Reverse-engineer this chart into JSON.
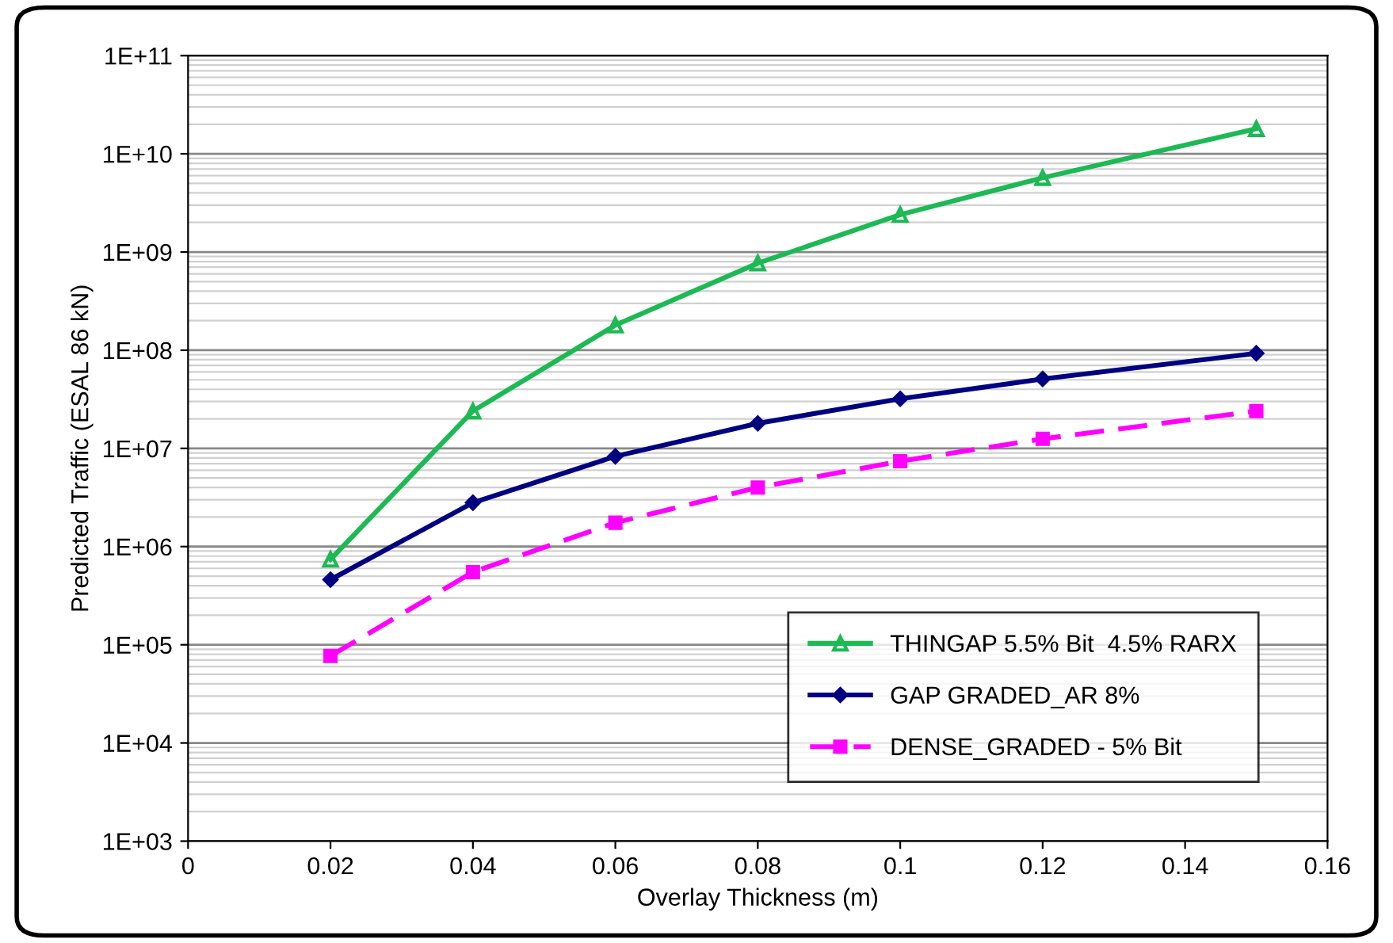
{
  "chart_data": {
    "type": "line",
    "xlabel": "Overlay Thickness (m)",
    "ylabel": "Predicted Traffic (ESAL 86 kN)",
    "x": [
      0.02,
      0.04,
      0.06,
      0.08,
      0.1,
      0.12,
      0.15
    ],
    "series": [
      {
        "name": "THINGAP 5.5% Bit  4.5% RARX",
        "color": "#1db954",
        "marker": "triangle",
        "line_style": "solid",
        "values": [
          740000,
          24000000,
          180000000,
          770000000,
          2400000000,
          5700000000,
          18000000000
        ]
      },
      {
        "name": "GAP GRADED_AR 8%",
        "color": "#000080",
        "marker": "diamond",
        "line_style": "solid",
        "values": [
          460000,
          2800000,
          8300000,
          18000000,
          32000000,
          51000000,
          93000000
        ]
      },
      {
        "name": "DENSE_GRADED - 5% Bit",
        "color": "#ff00ff",
        "marker": "square",
        "line_style": "dashed",
        "values": [
          77000,
          550000,
          1750000,
          4000000,
          7400000,
          12500000,
          24000000
        ]
      }
    ],
    "log": "y",
    "xlim": [
      0,
      0.16
    ],
    "xticks": [
      0,
      0.02,
      0.04,
      0.06,
      0.08,
      0.1,
      0.12,
      0.14,
      0.16
    ],
    "ylim": [
      1000,
      100000000000
    ],
    "yticks": [
      {
        "value": 1000,
        "label": "1E+03"
      },
      {
        "value": 10000,
        "label": "1E+04"
      },
      {
        "value": 100000,
        "label": "1E+05"
      },
      {
        "value": 1000000,
        "label": "1E+06"
      },
      {
        "value": 10000000,
        "label": "1E+07"
      },
      {
        "value": 100000000,
        "label": "1E+08"
      },
      {
        "value": 1000000000,
        "label": "1E+09"
      },
      {
        "value": 10000000000,
        "label": "1E+10"
      },
      {
        "value": 100000000000,
        "label": "1E+11"
      }
    ],
    "grid": "y",
    "legend": "bottom right"
  }
}
